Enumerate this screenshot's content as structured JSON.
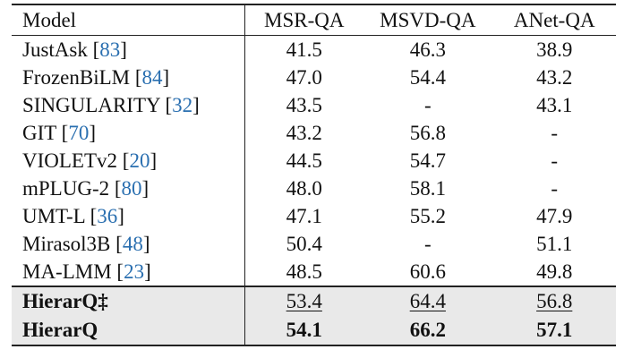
{
  "columns": [
    "Model",
    "MSR-QA",
    "MSVD-QA",
    "ANet-QA"
  ],
  "baselines": [
    {
      "name": "JustAsk",
      "ref": "83",
      "values": [
        "41.5",
        "46.3",
        "38.9"
      ]
    },
    {
      "name": "FrozenBiLM",
      "ref": "84",
      "values": [
        "47.0",
        "54.4",
        "43.2"
      ]
    },
    {
      "name": "SINGULARITY",
      "ref": "32",
      "values": [
        "43.5",
        "-",
        "43.1"
      ]
    },
    {
      "name": "GIT",
      "ref": "70",
      "values": [
        "43.2",
        "56.8",
        "-"
      ]
    },
    {
      "name": "VIOLETv2",
      "ref": "20",
      "values": [
        "44.5",
        "54.7",
        "-"
      ]
    },
    {
      "name": "mPLUG-2",
      "ref": "80",
      "values": [
        "48.0",
        "58.1",
        "-"
      ]
    },
    {
      "name": "UMT-L",
      "ref": "36",
      "values": [
        "47.1",
        "55.2",
        "47.9"
      ]
    },
    {
      "name": "Mirasol3B",
      "ref": "48",
      "values": [
        "50.4",
        "-",
        "51.1"
      ]
    },
    {
      "name": "MA-LMM",
      "ref": "23",
      "values": [
        "48.5",
        "60.6",
        "49.8"
      ]
    }
  ],
  "ours": [
    {
      "name": "HierarQ‡",
      "values": [
        "53.4",
        "64.4",
        "56.8"
      ],
      "style": "underline"
    },
    {
      "name": "HierarQ",
      "values": [
        "54.1",
        "66.2",
        "57.1"
      ],
      "style": "bold"
    }
  ],
  "colors": {
    "reference_link": "#2a6fb0",
    "highlight_background": "#e9e9e9"
  }
}
